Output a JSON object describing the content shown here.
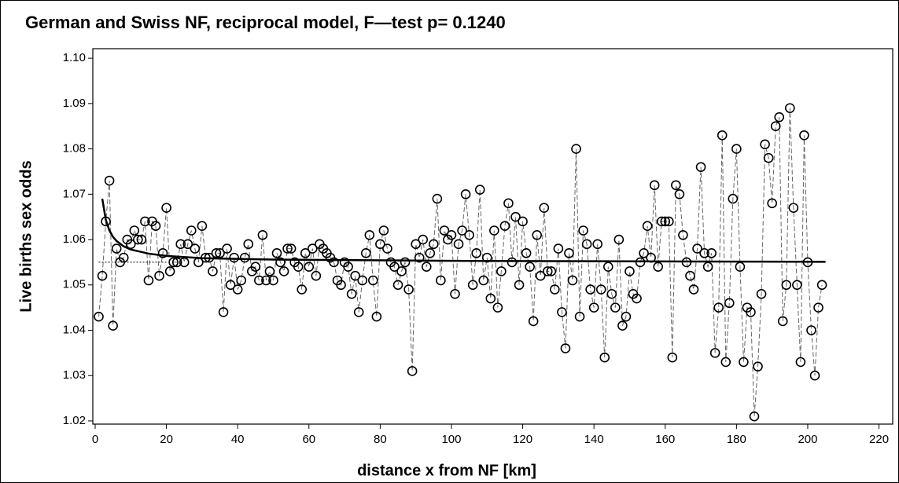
{
  "chart_data": {
    "type": "line",
    "title": "German and Swiss NF, reciprocal model, F—test p= 0.1240",
    "xlabel": "distance x from NF [km]",
    "ylabel": "Live births sex odds",
    "xlim": [
      -0.66,
      223.85
    ],
    "ylim": [
      1.0193,
      1.1021
    ],
    "xticks": [
      0,
      20,
      40,
      60,
      80,
      100,
      120,
      140,
      160,
      180,
      200,
      220
    ],
    "yticks": [
      1.02,
      1.03,
      1.04,
      1.05,
      1.06,
      1.07,
      1.08,
      1.09,
      {
        "value": 1.1,
        "label": "1.10"
      }
    ],
    "series": [
      {
        "color": "#666666",
        "dash": "dashed",
        "markers": true,
        "x": [
          1,
          2,
          3,
          4,
          5,
          6,
          7,
          8,
          9,
          10,
          11,
          12,
          13,
          14,
          15,
          16,
          17,
          18,
          19,
          20,
          21,
          22,
          23,
          24,
          25,
          26,
          27,
          28,
          29,
          30,
          31,
          32,
          33,
          34,
          35,
          36,
          37,
          38,
          39,
          40,
          41,
          42,
          43,
          44,
          45,
          46,
          47,
          48,
          49,
          50,
          51,
          52,
          53,
          54,
          55,
          56,
          57,
          58,
          59,
          60,
          61,
          62,
          63,
          64,
          65,
          66,
          67,
          68,
          69,
          70,
          71,
          72,
          73,
          74,
          75,
          76,
          77,
          78,
          79,
          80,
          81,
          82,
          83,
          84,
          85,
          86,
          87,
          88,
          89,
          90,
          91,
          92,
          93,
          94,
          95,
          96,
          97,
          98,
          99,
          100,
          101,
          102,
          103,
          104,
          105,
          106,
          107,
          108,
          109,
          110,
          111,
          112,
          113,
          114,
          115,
          116,
          117,
          118,
          119,
          120,
          121,
          122,
          123,
          124,
          125,
          126,
          127,
          128,
          129,
          130,
          131,
          132,
          133,
          134,
          135,
          136,
          137,
          138,
          139,
          140,
          141,
          142,
          143,
          144,
          145,
          146,
          147,
          148,
          149,
          150,
          151,
          152,
          153,
          154,
          155,
          156,
          157,
          158,
          159,
          160,
          161,
          162,
          163,
          164,
          165,
          166,
          167,
          168,
          169,
          170,
          171,
          172,
          173,
          174,
          175,
          176,
          177,
          178,
          179,
          180,
          181,
          182,
          183,
          184,
          185,
          186,
          187,
          188,
          189,
          190,
          191,
          192,
          193,
          194,
          195,
          196,
          197,
          198,
          199,
          200,
          201,
          202,
          203,
          204
        ],
        "values": [
          1.043,
          1.052,
          1.064,
          1.073,
          1.041,
          1.058,
          1.055,
          1.056,
          1.06,
          1.059,
          1.062,
          1.06,
          1.06,
          1.064,
          1.051,
          1.064,
          1.063,
          1.052,
          1.057,
          1.067,
          1.053,
          1.055,
          1.055,
          1.059,
          1.055,
          1.059,
          1.062,
          1.058,
          1.055,
          1.063,
          1.056,
          1.056,
          1.053,
          1.057,
          1.057,
          1.044,
          1.058,
          1.05,
          1.056,
          1.049,
          1.051,
          1.056,
          1.059,
          1.053,
          1.054,
          1.051,
          1.061,
          1.051,
          1.053,
          1.051,
          1.057,
          1.055,
          1.053,
          1.058,
          1.058,
          1.055,
          1.054,
          1.049,
          1.057,
          1.054,
          1.058,
          1.052,
          1.059,
          1.058,
          1.057,
          1.056,
          1.055,
          1.051,
          1.05,
          1.055,
          1.054,
          1.048,
          1.052,
          1.044,
          1.051,
          1.057,
          1.061,
          1.051,
          1.043,
          1.059,
          1.062,
          1.058,
          1.055,
          1.054,
          1.05,
          1.053,
          1.055,
          1.049,
          1.031,
          1.059,
          1.056,
          1.06,
          1.054,
          1.057,
          1.059,
          1.069,
          1.051,
          1.062,
          1.06,
          1.061,
          1.048,
          1.059,
          1.062,
          1.07,
          1.061,
          1.05,
          1.057,
          1.071,
          1.051,
          1.056,
          1.047,
          1.062,
          1.045,
          1.053,
          1.063,
          1.068,
          1.055,
          1.065,
          1.05,
          1.064,
          1.057,
          1.054,
          1.042,
          1.061,
          1.052,
          1.067,
          1.053,
          1.053,
          1.049,
          1.058,
          1.044,
          1.036,
          1.057,
          1.051,
          1.08,
          1.043,
          1.062,
          1.059,
          1.049,
          1.045,
          1.059,
          1.049,
          1.034,
          1.054,
          1.048,
          1.045,
          1.06,
          1.041,
          1.043,
          1.053,
          1.048,
          1.047,
          1.055,
          1.057,
          1.063,
          1.056,
          1.072,
          1.054,
          1.064,
          1.064,
          1.064,
          1.034,
          1.072,
          1.07,
          1.061,
          1.055,
          1.052,
          1.049,
          1.058,
          1.076,
          1.057,
          1.054,
          1.057,
          1.035,
          1.045,
          1.083,
          1.033,
          1.046,
          1.069,
          1.08,
          1.054,
          1.033,
          1.045,
          1.044,
          1.021,
          1.032,
          1.048,
          1.081,
          1.078,
          1.068,
          1.085,
          1.087,
          1.042,
          1.05,
          1.089,
          1.067,
          1.05,
          1.033,
          1.083,
          1.055,
          1.04,
          1.03,
          1.045,
          1.05
        ]
      },
      {
        "color": "#000000",
        "dash": "solid",
        "markers": false,
        "width": 2.5,
        "x": [
          2,
          3,
          4,
          5,
          6,
          8,
          10,
          15,
          20,
          30,
          50,
          100,
          150,
          205
        ],
        "values": [
          1.069,
          1.0643,
          1.062,
          1.0606,
          1.0597,
          1.0585,
          1.0578,
          1.0569,
          1.0564,
          1.0559,
          1.0556,
          1.0553,
          1.0552,
          1.0551
        ]
      },
      {
        "color": "#000000",
        "dash": "dotted",
        "markers": false,
        "x": [
          1,
          20
        ],
        "values": [
          1.055,
          1.055
        ]
      }
    ]
  }
}
